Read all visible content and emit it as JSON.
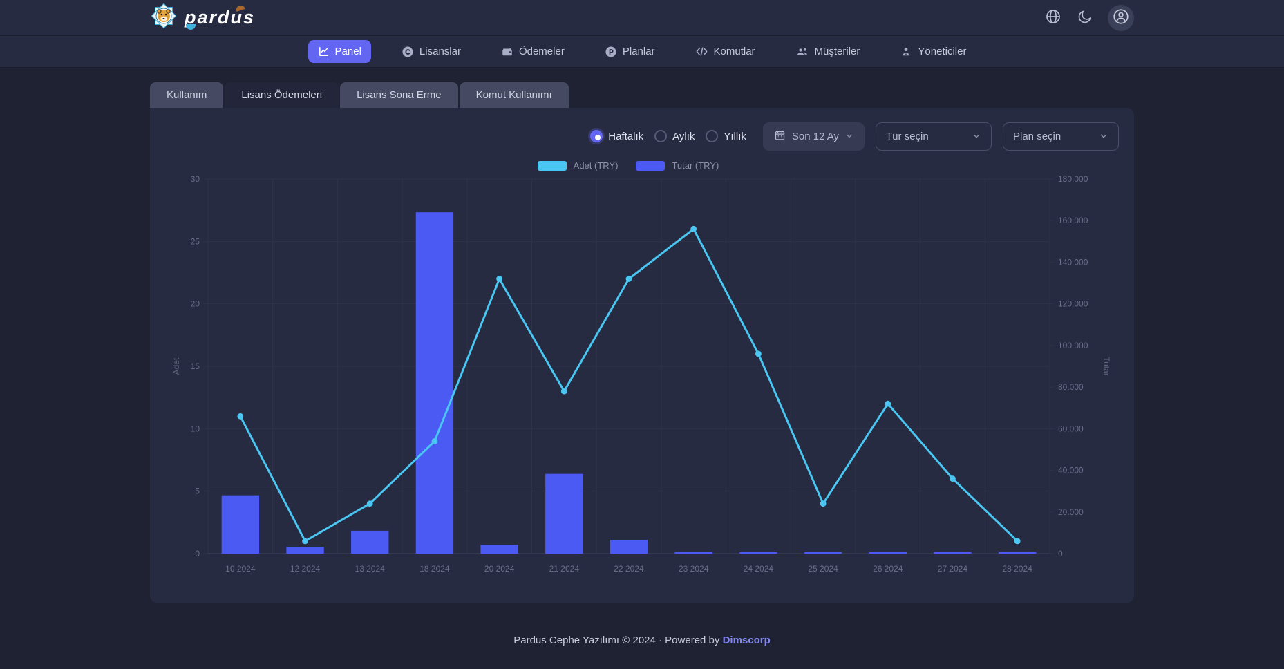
{
  "brand": {
    "name": "pardus"
  },
  "header": {
    "icons": [
      "globe-icon",
      "moon-icon",
      "user-avatar-icon"
    ]
  },
  "nav": {
    "items": [
      {
        "label": "Panel",
        "active": true
      },
      {
        "label": "Lisanslar",
        "active": false
      },
      {
        "label": "Ödemeler",
        "active": false
      },
      {
        "label": "Planlar",
        "active": false
      },
      {
        "label": "Komutlar",
        "active": false
      },
      {
        "label": "Müşteriler",
        "active": false
      },
      {
        "label": "Yöneticiler",
        "active": false
      }
    ]
  },
  "tabs": {
    "items": [
      {
        "label": "Kullanım",
        "active": false
      },
      {
        "label": "Lisans Ödemeleri",
        "active": true
      },
      {
        "label": "Lisans Sona Erme",
        "active": false
      },
      {
        "label": "Komut Kullanımı",
        "active": false
      }
    ]
  },
  "filters": {
    "period_options": [
      {
        "label": "Haftalık",
        "selected": true
      },
      {
        "label": "Aylık",
        "selected": false
      },
      {
        "label": "Yıllık",
        "selected": false
      }
    ],
    "range_button_label": "Son 12 Ay",
    "type_select_placeholder": "Tür seçin",
    "plan_select_placeholder": "Plan seçin"
  },
  "chart_data": {
    "type": "bar+line",
    "categories": [
      "10 2024",
      "12 2024",
      "13 2024",
      "18 2024",
      "20 2024",
      "21 2024",
      "22 2024",
      "23 2024",
      "24 2024",
      "25 2024",
      "26 2024",
      "27 2024",
      "28 2024"
    ],
    "series": [
      {
        "name": "Adet (TRY)",
        "type": "line",
        "axis": "left",
        "color": "#49c7f2",
        "values": [
          11,
          1,
          4,
          9,
          22,
          13,
          22,
          26,
          16,
          4,
          12,
          6,
          1
        ]
      },
      {
        "name": "Tutar (TRY)",
        "type": "bar",
        "axis": "right",
        "color": "#4b5af2",
        "values": [
          28000,
          3300,
          11000,
          164000,
          4200,
          38300,
          6600,
          800,
          500,
          400,
          600,
          400,
          700
        ]
      }
    ],
    "left_axis": {
      "title": "Adet",
      "min": 0,
      "max": 30,
      "step": 5
    },
    "right_axis": {
      "title": "Tutar",
      "min": 0,
      "max": 180000,
      "step": 20000
    },
    "grid": true,
    "legend_position": "top"
  },
  "footer": {
    "text": "Pardus Cephe Yazılımı © 2024 · Powered by",
    "link": "Dimscorp"
  },
  "colors": {
    "accent": "#6366f1",
    "line": "#49c7f2",
    "bar": "#4b5af2",
    "card": "#272b42"
  }
}
